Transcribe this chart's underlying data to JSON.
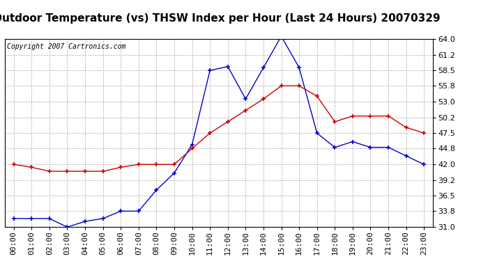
{
  "title": "Outdoor Temperature (vs) THSW Index per Hour (Last 24 Hours) 20070329",
  "copyright": "Copyright 2007 Cartronics.com",
  "hours": [
    "00:00",
    "01:00",
    "02:00",
    "03:00",
    "04:00",
    "05:00",
    "06:00",
    "07:00",
    "08:00",
    "09:00",
    "10:00",
    "11:00",
    "12:00",
    "13:00",
    "14:00",
    "15:00",
    "16:00",
    "17:00",
    "18:00",
    "19:00",
    "20:00",
    "21:00",
    "22:00",
    "23:00"
  ],
  "blue_data": [
    32.5,
    32.5,
    32.5,
    31.0,
    32.0,
    32.5,
    33.8,
    33.8,
    37.5,
    40.5,
    45.5,
    58.5,
    59.2,
    53.5,
    59.0,
    64.5,
    59.0,
    47.5,
    45.0,
    46.0,
    45.0,
    45.0,
    43.5,
    42.0
  ],
  "red_data": [
    42.0,
    41.5,
    40.8,
    40.8,
    40.8,
    40.8,
    41.5,
    42.0,
    42.0,
    42.0,
    44.8,
    47.5,
    49.5,
    51.5,
    53.5,
    55.8,
    55.8,
    54.0,
    49.5,
    50.5,
    50.5,
    50.5,
    48.5,
    47.5
  ],
  "y_ticks": [
    31.0,
    33.8,
    36.5,
    39.2,
    42.0,
    44.8,
    47.5,
    50.2,
    53.0,
    55.8,
    58.5,
    61.2,
    64.0
  ],
  "ylim": [
    31.0,
    64.0
  ],
  "blue_color": "#0000cc",
  "red_color": "#cc0000",
  "background_color": "#ffffff",
  "grid_color": "#aaaaaa",
  "title_fontsize": 11,
  "axis_fontsize": 8,
  "copyright_fontsize": 7
}
